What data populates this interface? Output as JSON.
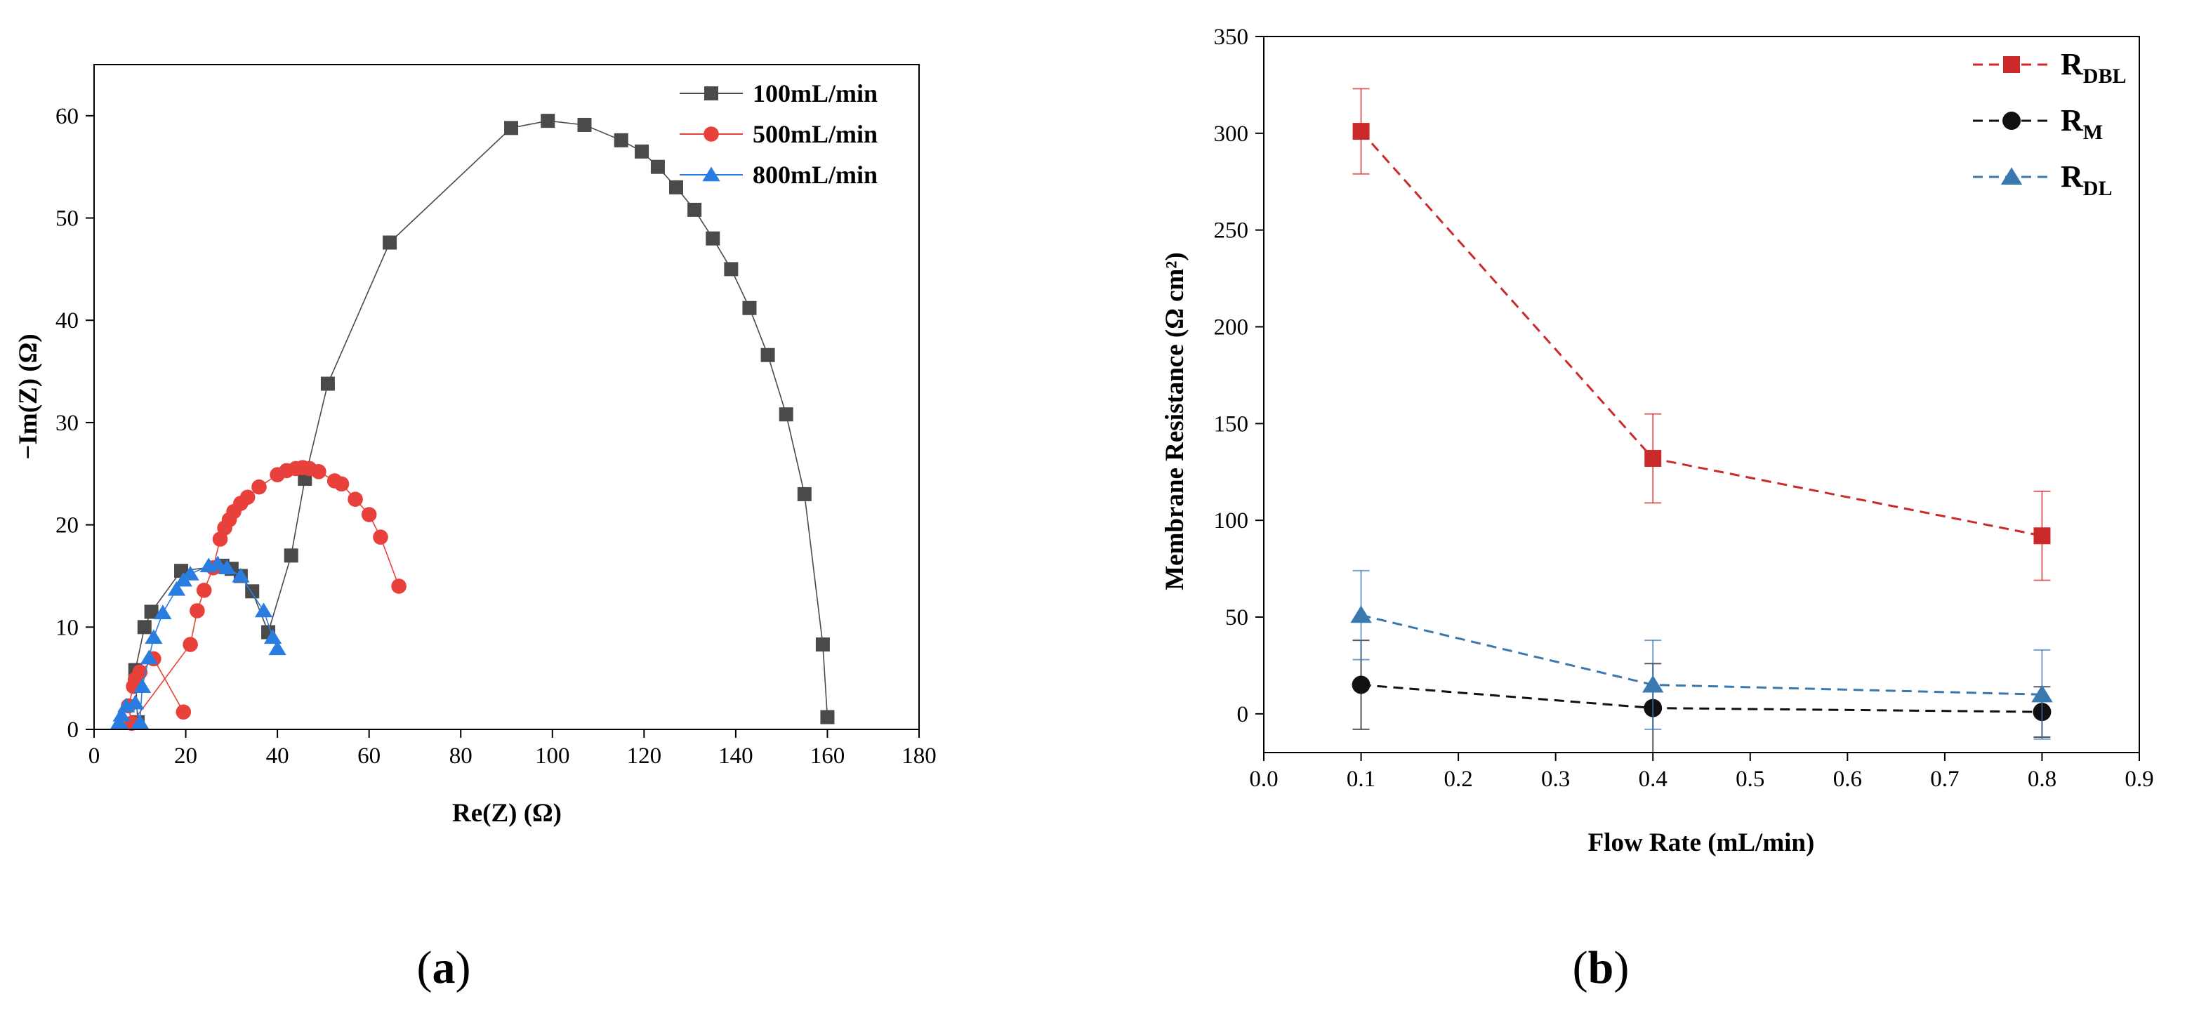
{
  "chart_data": [
    {
      "type": "scatter",
      "panel_label": "a",
      "xlabel": "Re(Z) (Ω)",
      "ylabel": "−Im(Z) (Ω)",
      "xlim": [
        0,
        180
      ],
      "ylim": [
        0,
        65
      ],
      "x_ticks": [
        "0",
        "20",
        "40",
        "60",
        "80",
        "100",
        "120",
        "140",
        "160",
        "180"
      ],
      "y_ticks": [
        "0",
        "10",
        "20",
        "30",
        "40",
        "50",
        "60"
      ],
      "legend_position": "top-right",
      "grid": false,
      "series": [
        {
          "name": "100mL/min",
          "color": "#4a4a4a",
          "marker": "square",
          "points": [
            [
              9.5,
              0.7
            ],
            [
              9,
              5.8
            ],
            [
              11,
              10
            ],
            [
              12.5,
              11.5
            ],
            [
              19,
              15.5
            ],
            [
              28,
              16
            ],
            [
              30,
              15.7
            ],
            [
              32,
              15
            ],
            [
              34.5,
              13.5
            ],
            [
              38,
              9.5
            ],
            [
              43,
              17
            ],
            [
              46,
              24.5
            ],
            [
              51,
              33.8
            ],
            [
              64.5,
              47.6
            ],
            [
              91,
              58.8
            ],
            [
              99,
              59.5
            ],
            [
              107,
              59.1
            ],
            [
              115,
              57.6
            ],
            [
              119.5,
              56.5
            ],
            [
              123,
              55
            ],
            [
              127,
              53
            ],
            [
              131,
              50.8
            ],
            [
              135,
              48
            ],
            [
              139,
              45
            ],
            [
              143,
              41.2
            ],
            [
              147,
              36.6
            ],
            [
              151,
              30.8
            ],
            [
              155,
              23
            ],
            [
              159,
              8.3
            ],
            [
              160,
              1.2
            ]
          ]
        },
        {
          "name": "500mL/min",
          "color": "#e8403a",
          "marker": "circle",
          "points": [
            [
              19.5,
              1.7
            ],
            [
              13,
              6.9
            ],
            [
              10,
              5.6
            ],
            [
              9,
              4.9
            ],
            [
              8.6,
              4.2
            ],
            [
              7.5,
              2.3
            ],
            [
              8.2,
              0.6
            ],
            [
              21,
              8.3
            ],
            [
              22.5,
              11.6
            ],
            [
              24,
              13.6
            ],
            [
              26,
              15.8
            ],
            [
              27.5,
              18.6
            ],
            [
              28.5,
              19.7
            ],
            [
              29.5,
              20.5
            ],
            [
              30.5,
              21.3
            ],
            [
              32,
              22.1
            ],
            [
              33.5,
              22.7
            ],
            [
              36,
              23.7
            ],
            [
              40,
              24.9
            ],
            [
              42,
              25.3
            ],
            [
              44,
              25.5
            ],
            [
              45.5,
              25.6
            ],
            [
              47,
              25.5
            ],
            [
              49,
              25.2
            ],
            [
              52.5,
              24.3
            ],
            [
              54,
              24
            ],
            [
              57,
              22.5
            ],
            [
              60,
              21
            ],
            [
              62.5,
              18.8
            ],
            [
              66.5,
              14
            ]
          ]
        },
        {
          "name": "800mL/min",
          "color": "#2a7de0",
          "marker": "triangle",
          "points": [
            [
              5.5,
              0.7
            ],
            [
              6,
              1.4
            ],
            [
              7,
              2.3
            ],
            [
              9,
              2.6
            ],
            [
              10,
              0.7
            ],
            [
              10.5,
              4.2
            ],
            [
              12,
              7
            ],
            [
              13,
              9
            ],
            [
              15,
              11.4
            ],
            [
              18,
              13.7
            ],
            [
              19.5,
              14.6
            ],
            [
              21,
              15.2
            ],
            [
              25,
              16
            ],
            [
              27,
              16.2
            ],
            [
              29,
              15.8
            ],
            [
              32,
              15
            ],
            [
              37,
              11.6
            ],
            [
              39,
              9
            ],
            [
              40,
              7.9
            ]
          ]
        }
      ]
    },
    {
      "type": "line",
      "panel_label": "b",
      "xlabel": "Flow Rate (mL/min)",
      "ylabel": "Membrane Resistance (Ω cm²)",
      "xlim": [
        0.0,
        0.9
      ],
      "ylim": [
        -20,
        350
      ],
      "x_ticks": [
        "0.0",
        "0.1",
        "0.2",
        "0.3",
        "0.4",
        "0.5",
        "0.6",
        "0.7",
        "0.8",
        "0.9"
      ],
      "y_ticks": [
        "0",
        "50",
        "100",
        "150",
        "200",
        "250",
        "300",
        "350"
      ],
      "legend_position": "top-right",
      "grid": false,
      "series": [
        {
          "name_main": "R",
          "name_sub": "DBL",
          "color": "#cc2a2a",
          "marker": "square",
          "x": [
            0.1,
            0.4,
            0.8
          ],
          "values": [
            301,
            132,
            92
          ],
          "errors": [
            22,
            23,
            23
          ]
        },
        {
          "name_main": "R",
          "name_sub": "M",
          "color": "#111111",
          "marker": "circle",
          "x": [
            0.1,
            0.4,
            0.8
          ],
          "values": [
            15,
            3,
            1
          ],
          "errors": [
            23,
            23,
            13
          ]
        },
        {
          "name_main": "R",
          "name_sub": "DL",
          "color": "#3a78b0",
          "marker": "triangle",
          "x": [
            0.1,
            0.4,
            0.8
          ],
          "values": [
            51,
            15,
            10
          ],
          "errors": [
            23,
            23,
            23
          ]
        }
      ]
    }
  ]
}
